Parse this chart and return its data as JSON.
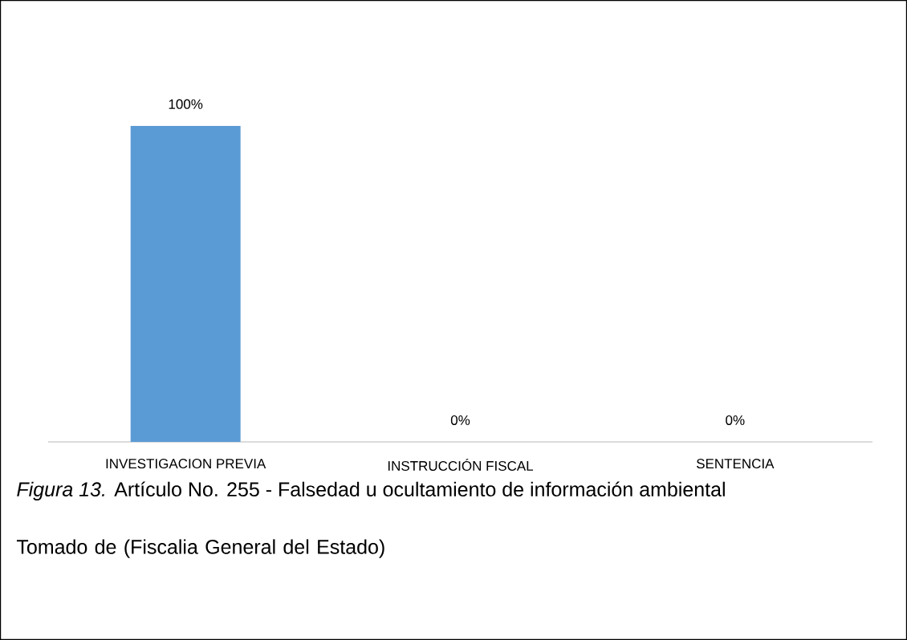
{
  "chart_data": {
    "type": "bar",
    "categories": [
      "INVESTIGACION PREVIA",
      "INSTRUCCIÓN FISCAL",
      "SENTENCIA"
    ],
    "values": [
      100,
      0,
      0
    ],
    "value_labels": [
      "100%",
      "0%",
      "0%"
    ],
    "color": "#5b9bd5",
    "annotations": [
      "*Figura 13.* Artículo No. 255 - Falsedad u ocultamiento de información ambiental",
      "Tomado de (Fiscalia General del Estado)"
    ]
  }
}
